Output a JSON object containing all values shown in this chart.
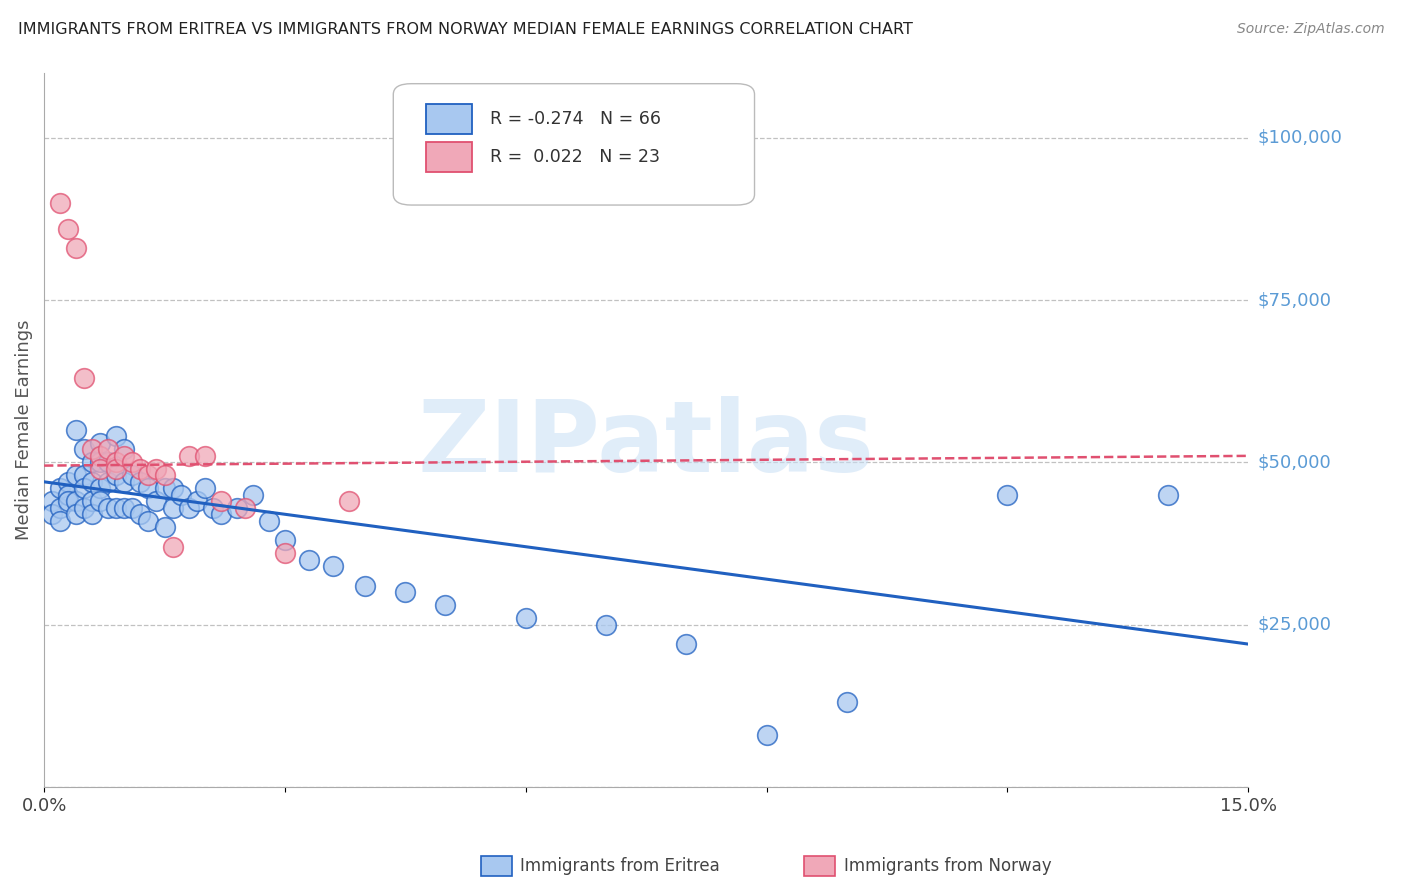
{
  "title": "IMMIGRANTS FROM ERITREA VS IMMIGRANTS FROM NORWAY MEDIAN FEMALE EARNINGS CORRELATION CHART",
  "source": "Source: ZipAtlas.com",
  "ylabel": "Median Female Earnings",
  "watermark": "ZIPatlas",
  "series1_label": "Immigrants from Eritrea",
  "series2_label": "Immigrants from Norway",
  "series1_R": -0.274,
  "series1_N": 66,
  "series2_R": 0.022,
  "series2_N": 23,
  "series1_color": "#a8c8f0",
  "series2_color": "#f0a8b8",
  "series1_line_color": "#2060c0",
  "series2_line_color": "#e05070",
  "xlim": [
    0.0,
    0.15
  ],
  "ylim": [
    0,
    110000
  ],
  "yticks": [
    0,
    25000,
    50000,
    75000,
    100000
  ],
  "ytick_labels": [
    "",
    "$25,000",
    "$50,000",
    "$75,000",
    "$100,000"
  ],
  "background_color": "#ffffff",
  "grid_color": "#bbbbbb",
  "series1_x": [
    0.001,
    0.001,
    0.002,
    0.002,
    0.002,
    0.003,
    0.003,
    0.003,
    0.004,
    0.004,
    0.004,
    0.004,
    0.005,
    0.005,
    0.005,
    0.005,
    0.006,
    0.006,
    0.006,
    0.006,
    0.007,
    0.007,
    0.007,
    0.007,
    0.008,
    0.008,
    0.008,
    0.009,
    0.009,
    0.009,
    0.01,
    0.01,
    0.01,
    0.011,
    0.011,
    0.012,
    0.012,
    0.013,
    0.013,
    0.014,
    0.015,
    0.015,
    0.016,
    0.016,
    0.017,
    0.018,
    0.019,
    0.02,
    0.021,
    0.022,
    0.024,
    0.026,
    0.028,
    0.03,
    0.033,
    0.036,
    0.04,
    0.045,
    0.05,
    0.06,
    0.07,
    0.08,
    0.09,
    0.1,
    0.12,
    0.14
  ],
  "series1_y": [
    44000,
    42000,
    46000,
    43000,
    41000,
    47000,
    45000,
    44000,
    55000,
    48000,
    44000,
    42000,
    52000,
    48000,
    46000,
    43000,
    50000,
    47000,
    44000,
    42000,
    53000,
    50000,
    46000,
    44000,
    50000,
    47000,
    43000,
    54000,
    48000,
    43000,
    52000,
    47000,
    43000,
    48000,
    43000,
    47000,
    42000,
    46000,
    41000,
    44000,
    46000,
    40000,
    46000,
    43000,
    45000,
    43000,
    44000,
    46000,
    43000,
    42000,
    43000,
    45000,
    41000,
    38000,
    35000,
    34000,
    31000,
    30000,
    28000,
    26000,
    25000,
    22000,
    8000,
    13000,
    45000,
    45000
  ],
  "series2_x": [
    0.002,
    0.003,
    0.004,
    0.005,
    0.006,
    0.007,
    0.007,
    0.008,
    0.009,
    0.009,
    0.01,
    0.011,
    0.012,
    0.013,
    0.014,
    0.015,
    0.016,
    0.018,
    0.02,
    0.022,
    0.025,
    0.03,
    0.038
  ],
  "series2_y": [
    90000,
    86000,
    83000,
    63000,
    52000,
    51000,
    49000,
    52000,
    50000,
    49000,
    51000,
    50000,
    49000,
    48000,
    49000,
    48000,
    37000,
    51000,
    51000,
    44000,
    43000,
    36000,
    44000
  ],
  "trendline1_x0": 0.0,
  "trendline1_x1": 0.15,
  "trendline1_y0": 47000,
  "trendline1_y1": 22000,
  "trendline2_x0": 0.0,
  "trendline2_x1": 0.15,
  "trendline2_y0": 49500,
  "trendline2_y1": 51000
}
